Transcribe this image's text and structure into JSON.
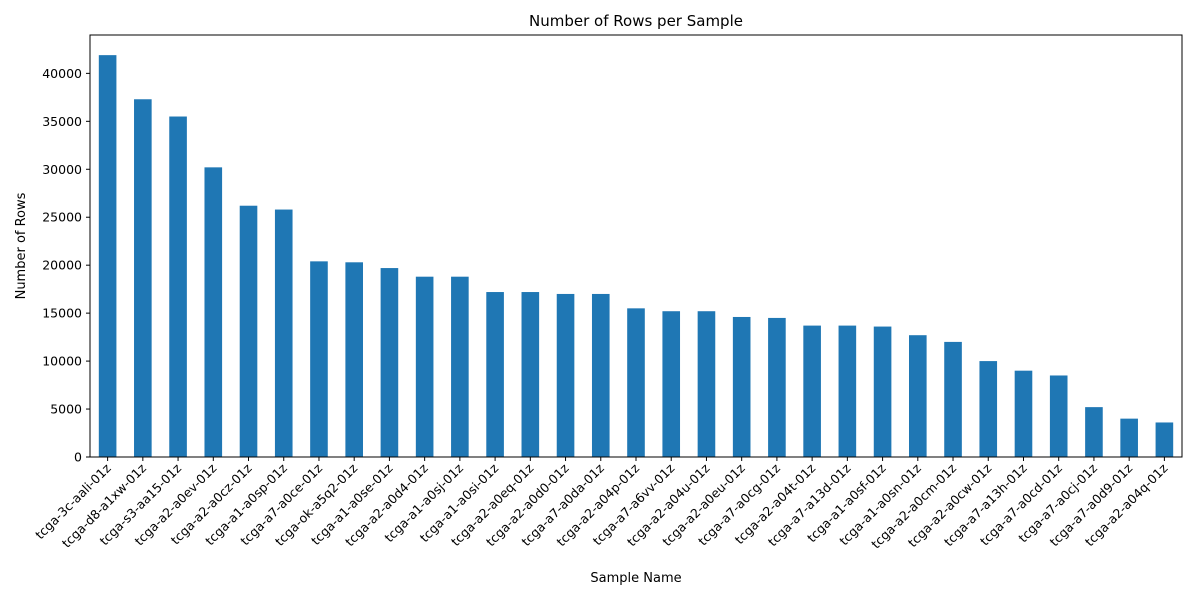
{
  "chart_data": {
    "type": "bar",
    "title": "Number of Rows per Sample",
    "xlabel": "Sample Name",
    "ylabel": "Number of Rows",
    "ylim": [
      0,
      44000
    ],
    "yticks": [
      0,
      5000,
      10000,
      15000,
      20000,
      25000,
      30000,
      35000,
      40000
    ],
    "grid": false,
    "bar_color": "#1f77b4",
    "categories": [
      "tcga-3c-aali-01z",
      "tcga-d8-a1xw-01z",
      "tcga-s3-aa15-01z",
      "tcga-a2-a0ev-01z",
      "tcga-a2-a0cz-01z",
      "tcga-a1-a0sp-01z",
      "tcga-a7-a0ce-01z",
      "tcga-ok-a5q2-01z",
      "tcga-a1-a0se-01z",
      "tcga-a2-a0d4-01z",
      "tcga-a1-a0sj-01z",
      "tcga-a1-a0si-01z",
      "tcga-a2-a0eq-01z",
      "tcga-a2-a0d0-01z",
      "tcga-a7-a0da-01z",
      "tcga-a2-a04p-01z",
      "tcga-a7-a6vv-01z",
      "tcga-a2-a04u-01z",
      "tcga-a2-a0eu-01z",
      "tcga-a7-a0cg-01z",
      "tcga-a2-a04t-01z",
      "tcga-a7-a13d-01z",
      "tcga-a1-a0sf-01z",
      "tcga-a1-a0sn-01z",
      "tcga-a2-a0cm-01z",
      "tcga-a2-a0cw-01z",
      "tcga-a7-a13h-01z",
      "tcga-a7-a0cd-01z",
      "tcga-a7-a0cj-01z",
      "tcga-a7-a0d9-01z",
      "tcga-a2-a04q-01z"
    ],
    "values": [
      41900,
      37300,
      35500,
      30200,
      26200,
      25800,
      20400,
      20300,
      19700,
      18800,
      18800,
      17200,
      17200,
      17000,
      17000,
      15500,
      15200,
      15200,
      14600,
      14500,
      13700,
      13700,
      13600,
      12700,
      12000,
      10000,
      9000,
      8500,
      5200,
      4000,
      3600
    ]
  }
}
